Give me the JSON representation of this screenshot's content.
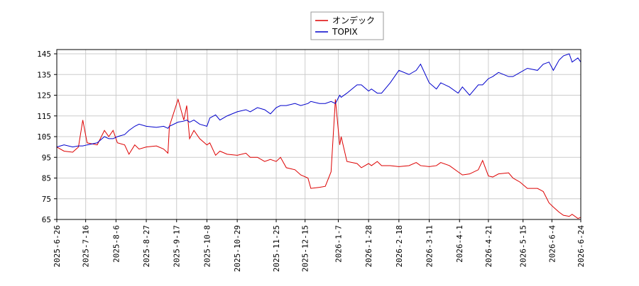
{
  "chart_data": {
    "type": "line",
    "x": [
      "2025-6-26",
      "2025-7-1",
      "2025-7-7",
      "2025-7-11",
      "2025-7-14",
      "2025-7-17",
      "2025-7-24",
      "2025-7-29",
      "2025-8-1",
      "2025-8-4",
      "2025-8-7",
      "2025-8-12",
      "2025-8-15",
      "2025-8-19",
      "2025-8-22",
      "2025-8-27",
      "2025-9-3",
      "2025-9-8",
      "2025-9-11",
      "2025-9-12",
      "2025-9-18",
      "2025-9-22",
      "2025-9-24",
      "2025-9-26",
      "2025-9-29",
      "2025-10-3",
      "2025-10-8",
      "2025-10-10",
      "2025-10-14",
      "2025-10-17",
      "2025-10-22",
      "2025-10-29",
      "2025-11-4",
      "2025-11-7",
      "2025-11-12",
      "2025-11-17",
      "2025-11-21",
      "2025-11-25",
      "2025-11-28",
      "2025-12-2",
      "2025-12-8",
      "2025-12-12",
      "2025-12-17",
      "2025-12-19",
      "2025-12-25",
      "2025-12-29",
      "2026-1-2",
      "2026-1-5",
      "2026-1-8",
      "2026-1-9",
      "2026-1-13",
      "2026-1-20",
      "2026-1-23",
      "2026-1-28",
      "2026-1-30",
      "2026-2-3",
      "2026-2-6",
      "2026-2-12",
      "2026-2-18",
      "2026-2-25",
      "2026-3-2",
      "2026-3-5",
      "2026-3-11",
      "2026-3-16",
      "2026-3-19",
      "2026-3-25",
      "2026-3-31",
      "2026-4-3",
      "2026-4-8",
      "2026-4-14",
      "2026-4-17",
      "2026-4-21",
      "2026-4-24",
      "2026-4-28",
      "2026-5-5",
      "2026-5-8",
      "2026-5-13",
      "2026-5-18",
      "2026-5-25",
      "2026-5-29",
      "2026-6-2",
      "2026-6-5",
      "2026-6-9",
      "2026-6-12",
      "2026-6-16",
      "2026-6-18",
      "2026-6-22",
      "2026-6-24"
    ],
    "series": [
      {
        "name": "オンデック",
        "color": "#dd0000",
        "values": [
          100,
          98,
          97.5,
          100,
          113,
          102,
          101,
          108,
          105,
          108,
          102,
          101,
          96.5,
          101,
          99,
          100,
          100.5,
          99,
          97,
          110,
          123,
          113,
          120,
          104,
          108,
          104,
          101,
          102,
          96,
          98,
          96.5,
          96,
          97,
          95,
          95,
          93,
          94,
          93,
          95,
          90,
          89,
          86.5,
          85,
          80,
          80.5,
          81,
          88,
          123,
          101,
          105,
          93,
          92,
          90,
          92,
          91,
          93,
          91,
          91,
          90.5,
          91,
          92.5,
          91,
          90.5,
          91,
          92.5,
          91,
          88,
          86.5,
          87,
          89,
          93.5,
          86,
          85.5,
          87,
          87.5,
          85,
          83,
          80,
          80,
          78.5,
          73,
          71,
          68.5,
          67,
          66.5,
          67.5,
          65.5,
          66
        ]
      },
      {
        "name": "TOPIX",
        "color": "#0000cc",
        "values": [
          100,
          101,
          100,
          100.5,
          100.5,
          101,
          102,
          105,
          104,
          104,
          105,
          106,
          108,
          110,
          111,
          110,
          109.5,
          110,
          109,
          110,
          112,
          112.5,
          113,
          112,
          113,
          111,
          110,
          114,
          115.5,
          113,
          115,
          117,
          118,
          117,
          119,
          118,
          116,
          119,
          120,
          120,
          121,
          120,
          121,
          122,
          121,
          121,
          122,
          121,
          125,
          124,
          126,
          130,
          130,
          127,
          128,
          126,
          126,
          131,
          137,
          135,
          137,
          140,
          131,
          128,
          131,
          129,
          126,
          129,
          125,
          130,
          130,
          133,
          134,
          136,
          134,
          134,
          136,
          138,
          137,
          140,
          141,
          137,
          142,
          144,
          145,
          141,
          143,
          141
        ]
      }
    ],
    "xlim": [
      "2025-6-26",
      "2026-6-24"
    ],
    "xticks": [
      "2025-6-26",
      "2025-7-16",
      "2025-8-6",
      "2025-8-27",
      "2025-9-17",
      "2025-10-8",
      "2025-10-29",
      "2025-11-25",
      "2025-12-15",
      "2026-1-7",
      "2026-1-28",
      "2026-2-18",
      "2026-3-11",
      "2026-4-1",
      "2026-4-21",
      "2026-5-15",
      "2026-6-4",
      "2026-6-24"
    ],
    "ylim": [
      65,
      145
    ],
    "yticks": [
      65,
      75,
      85,
      95,
      105,
      115,
      125,
      135,
      145
    ],
    "grid": true,
    "legend": "top"
  }
}
